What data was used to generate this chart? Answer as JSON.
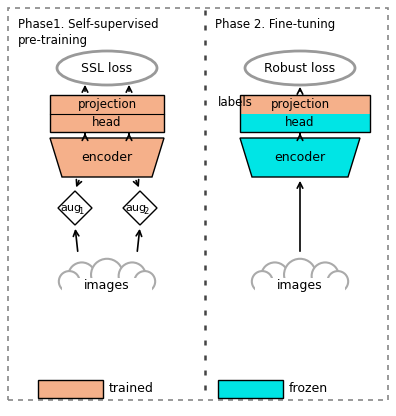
{
  "fig_width": 3.96,
  "fig_height": 4.16,
  "dpi": 100,
  "bg_color": "#ffffff",
  "orange_color": "#F5B08A",
  "cyan_color": "#00E5E5",
  "gray_ellipse_color": "#999999",
  "cloud_color": "#AAAAAA",
  "black_color": "#000000",
  "phase1_title": "Phase1. Self-supervised\npre-training",
  "phase2_title": "Phase 2. Fine-tuning",
  "legend_trained": "trained",
  "legend_frozen": "frozen"
}
